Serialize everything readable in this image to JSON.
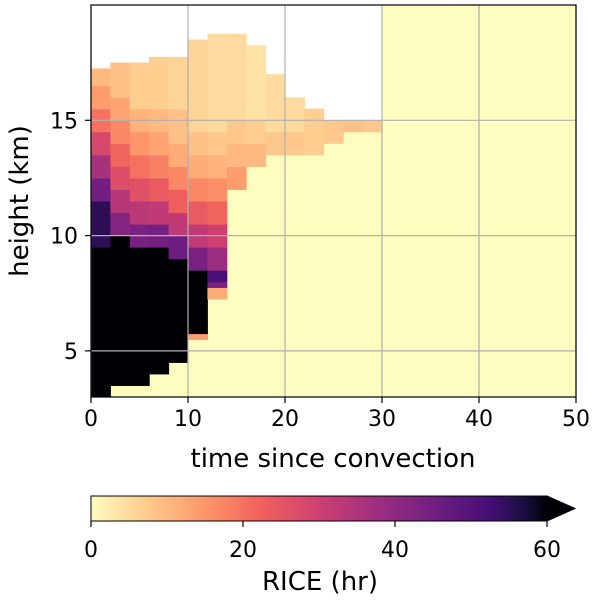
{
  "chart_data": {
    "type": "heatmap",
    "xlabel": "time since convection",
    "ylabel": "height (km)",
    "xlim": [
      0,
      50
    ],
    "ylim": [
      3,
      20
    ],
    "x_ticks": [
      0,
      10,
      20,
      30,
      40,
      50
    ],
    "y_ticks": [
      5,
      10,
      15
    ],
    "grid": true,
    "background_color": "#fcfdbf",
    "missing_color": "#ffffff",
    "colormap": "magma_r",
    "colorbar": {
      "label": "RICE (hr)",
      "range": [
        0,
        60
      ],
      "ticks": [
        0,
        20,
        40,
        60
      ],
      "extend": "max",
      "orientation": "horizontal"
    },
    "cells": {
      "x_bin_width": 2,
      "y_bin_height": 0.5,
      "columns": [
        {
          "x": 1,
          "top": 17.25,
          "bands": [
            [
              3.0,
              9.5,
              60
            ],
            [
              9.5,
              11.5,
              55
            ],
            [
              11.5,
              12.5,
              45
            ],
            [
              12.5,
              13.5,
              36
            ],
            [
              13.5,
              14.5,
              28
            ],
            [
              14.5,
              15.5,
              20
            ],
            [
              15.5,
              16.5,
              14
            ],
            [
              16.5,
              17.25,
              10
            ]
          ]
        },
        {
          "x": 3,
          "top": 17.5,
          "bands": [
            [
              3.5,
              10.0,
              60
            ],
            [
              10.0,
              11.0,
              42
            ],
            [
              11.0,
              12.0,
              34
            ],
            [
              12.0,
              13.0,
              27
            ],
            [
              13.0,
              14.0,
              22
            ],
            [
              14.0,
              15.0,
              17
            ],
            [
              15.0,
              16.0,
              13
            ],
            [
              16.0,
              17.5,
              9
            ]
          ]
        },
        {
          "x": 5,
          "top": 17.5,
          "bands": [
            [
              3.5,
              9.5,
              60
            ],
            [
              9.5,
              10.5,
              44
            ],
            [
              10.5,
              11.5,
              33
            ],
            [
              11.5,
              12.5,
              26
            ],
            [
              12.5,
              13.5,
              20
            ],
            [
              13.5,
              14.5,
              15
            ],
            [
              14.5,
              15.5,
              11
            ],
            [
              15.5,
              17.5,
              7
            ]
          ]
        },
        {
          "x": 7,
          "top": 17.75,
          "bands": [
            [
              4.0,
              9.5,
              60
            ],
            [
              9.5,
              10.5,
              45
            ],
            [
              10.5,
              11.5,
              32
            ],
            [
              11.5,
              12.5,
              24
            ],
            [
              12.5,
              13.5,
              18
            ],
            [
              13.5,
              14.5,
              13
            ],
            [
              14.5,
              15.5,
              10
            ],
            [
              15.5,
              17.75,
              7
            ]
          ]
        },
        {
          "x": 9,
          "top": 17.75,
          "bands": [
            [
              4.5,
              9.0,
              60
            ],
            [
              9.0,
              10.0,
              46
            ],
            [
              10.0,
              11.0,
              32
            ],
            [
              11.0,
              12.0,
              23
            ],
            [
              12.0,
              13.0,
              17
            ],
            [
              13.0,
              14.0,
              12
            ],
            [
              14.0,
              15.5,
              9
            ],
            [
              15.5,
              17.75,
              6
            ]
          ]
        },
        {
          "x": 11,
          "top": 18.5,
          "bands": [
            [
              5.5,
              5.75,
              14
            ],
            [
              5.75,
              6.0,
              60
            ],
            [
              6.0,
              8.5,
              60
            ],
            [
              8.5,
              9.5,
              44
            ],
            [
              9.5,
              10.5,
              32
            ],
            [
              10.5,
              11.5,
              24
            ],
            [
              11.5,
              12.5,
              17
            ],
            [
              12.5,
              13.5,
              12
            ],
            [
              13.5,
              14.5,
              9
            ],
            [
              14.5,
              18.5,
              6
            ]
          ]
        },
        {
          "x": 13,
          "top": 18.75,
          "bands": [
            [
              7.25,
              7.75,
              12
            ],
            [
              7.75,
              8.0,
              44
            ],
            [
              8.0,
              8.5,
              52
            ],
            [
              8.5,
              9.5,
              38
            ],
            [
              9.5,
              10.5,
              30
            ],
            [
              10.5,
              11.5,
              22
            ],
            [
              11.5,
              12.5,
              16
            ],
            [
              12.5,
              13.5,
              11
            ],
            [
              13.5,
              14.5,
              8
            ],
            [
              14.5,
              18.75,
              5
            ]
          ]
        },
        {
          "x": 15,
          "top": 18.75,
          "bands": [
            [
              12.0,
              13.0,
              14
            ],
            [
              13.0,
              14.0,
              10
            ],
            [
              14.0,
              15.0,
              8
            ],
            [
              15.0,
              18.75,
              5
            ]
          ]
        },
        {
          "x": 17,
          "top": 18.25,
          "bands": [
            [
              13.0,
              14.0,
              10
            ],
            [
              14.0,
              15.0,
              7
            ],
            [
              15.0,
              18.25,
              4
            ]
          ]
        },
        {
          "x": 19,
          "top": 17.0,
          "bands": [
            [
              13.5,
              14.5,
              8
            ],
            [
              14.5,
              17.0,
              5
            ]
          ]
        },
        {
          "x": 21,
          "top": 16.0,
          "bands": [
            [
              13.5,
              14.5,
              8
            ],
            [
              14.5,
              16.0,
              5
            ]
          ]
        },
        {
          "x": 23,
          "top": 15.5,
          "bands": [
            [
              13.5,
              15.5,
              7
            ]
          ]
        },
        {
          "x": 25,
          "top": 15.0,
          "bands": [
            [
              14.0,
              15.0,
              8
            ]
          ]
        },
        {
          "x": 27,
          "top": 15.0,
          "bands": [
            [
              14.5,
              15.0,
              9
            ]
          ]
        },
        {
          "x": 29,
          "top": 15.0,
          "bands": [
            [
              14.5,
              15.0,
              8
            ]
          ]
        }
      ]
    }
  }
}
